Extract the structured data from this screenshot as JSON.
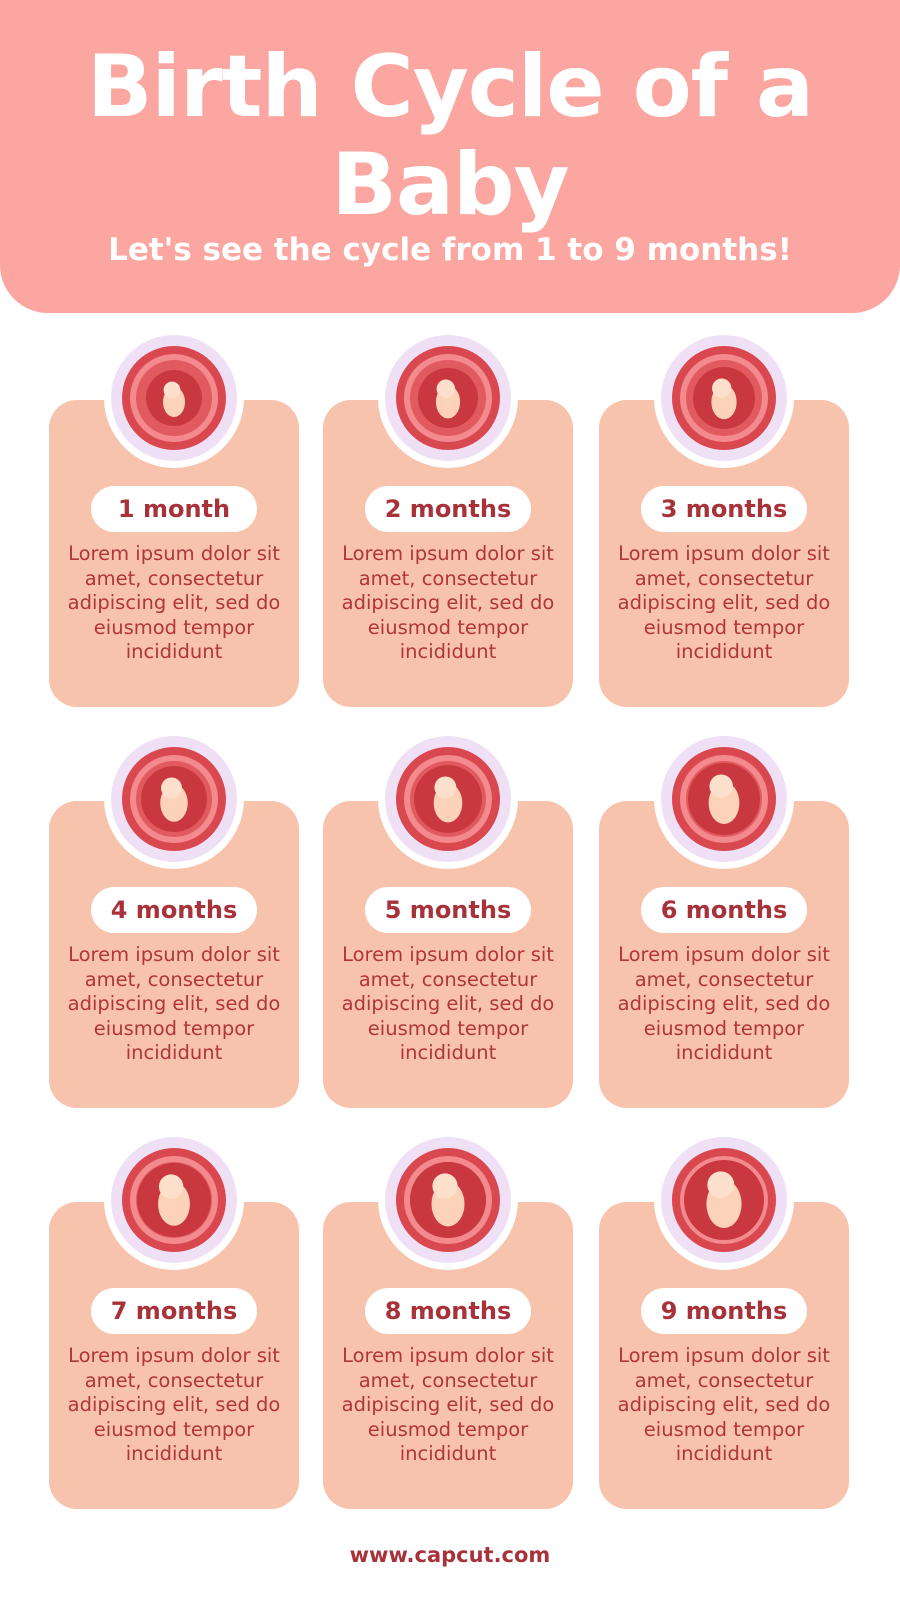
{
  "header": {
    "title": "Birth Cycle of a Baby",
    "subtitle": "Let's see the cycle from 1 to 9 months!"
  },
  "stages": [
    {
      "label": "1 month",
      "description": "Lorem ipsum dolor sit amet, consectetur adipiscing elit, sed do eiusmod tempor incididunt",
      "icon": "embryo-icon"
    },
    {
      "label": "2 months",
      "description": "Lorem ipsum dolor sit amet, consectetur adipiscing elit, sed do eiusmod tempor incididunt",
      "icon": "fetus-icon"
    },
    {
      "label": "3 months",
      "description": "Lorem ipsum dolor sit amet, consectetur adipiscing elit, sed do eiusmod tempor incididunt",
      "icon": "fetus-icon"
    },
    {
      "label": "4 months",
      "description": "Lorem ipsum dolor sit amet, consectetur adipiscing elit, sed do eiusmod tempor incididunt",
      "icon": "fetus-icon"
    },
    {
      "label": "5 months",
      "description": "Lorem ipsum dolor sit amet, consectetur adipiscing elit, sed do eiusmod tempor incididunt",
      "icon": "fetus-icon"
    },
    {
      "label": "6 months",
      "description": "Lorem ipsum dolor sit amet, consectetur adipiscing elit, sed do eiusmod tempor incididunt",
      "icon": "fetus-icon"
    },
    {
      "label": "7 months",
      "description": "Lorem ipsum dolor sit amet, consectetur adipiscing elit, sed do eiusmod tempor incididunt",
      "icon": "fetus-icon"
    },
    {
      "label": "8 months",
      "description": "Lorem ipsum dolor sit amet, consectetur adipiscing elit, sed do eiusmod tempor incididunt",
      "icon": "fetus-icon"
    },
    {
      "label": "9 months",
      "description": "Lorem ipsum dolor sit amet, consectetur adipiscing elit, sed do eiusmod tempor incididunt",
      "icon": "fetus-icon"
    }
  ],
  "footer": {
    "url": "www.capcut.com"
  },
  "colors": {
    "header": "#fba6a0",
    "card": "#f8c3ac",
    "text": "#a8323a",
    "ring": "#efe0f5",
    "womb": "#d9474f"
  }
}
